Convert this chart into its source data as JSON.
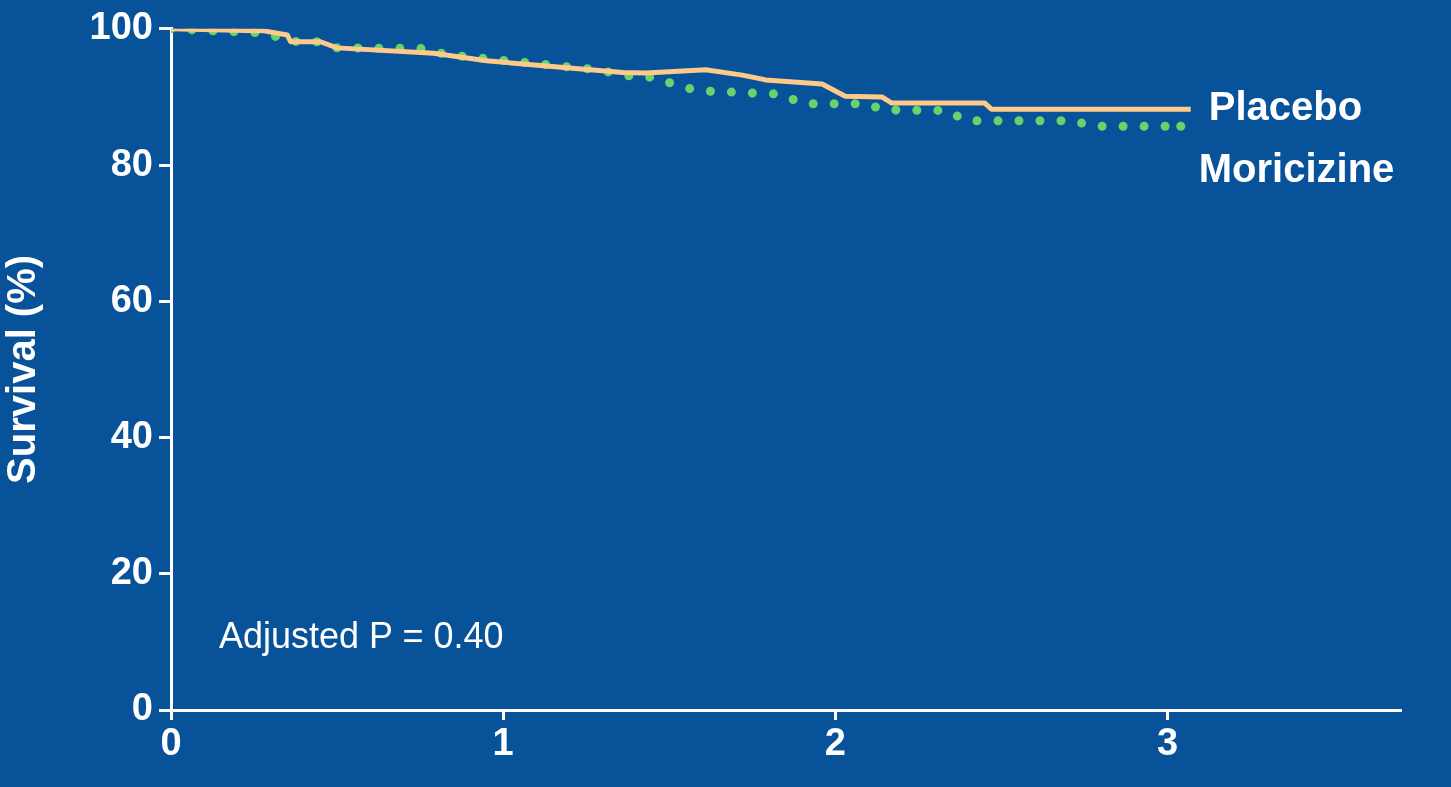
{
  "chart_data": {
    "type": "line",
    "ylabel": "Survival (%)",
    "xlim": [
      0,
      3.7
    ],
    "xticks": [
      0,
      1,
      2,
      3
    ],
    "ylim": [
      0,
      100
    ],
    "yticks": [
      0,
      20,
      40,
      60,
      80,
      100
    ],
    "grid": false,
    "legend": false,
    "marker": "none",
    "annotations": [
      "Adjusted P = 0.40"
    ],
    "series": [
      {
        "name": "Placebo",
        "color": "#ffc98a",
        "line_style": "solid",
        "x": [
          0,
          0.28,
          0.35,
          0.36,
          0.45,
          0.5,
          0.79,
          0.95,
          1.36,
          1.43,
          1.61,
          1.72,
          1.79,
          1.96,
          2.03,
          2.14,
          2.17,
          2.45,
          2.47,
          3.07
        ],
        "values": [
          100,
          99.7,
          99.1,
          98.1,
          98.1,
          97.2,
          96.4,
          95.3,
          93.6,
          93.5,
          94.0,
          93.2,
          92.5,
          91.9,
          90.1,
          90.0,
          89.1,
          89.1,
          88.2,
          88.2
        ]
      },
      {
        "name": "Moricizine",
        "color": "#66d46a",
        "line_style": "dotted",
        "x": [
          0,
          0.27,
          0.33,
          0.38,
          0.44,
          0.5,
          0.76,
          0.83,
          1.28,
          1.4,
          1.46,
          1.52,
          1.59,
          1.84,
          1.9,
          2.1,
          2.14,
          2.34,
          2.39,
          2.72,
          2.77,
          3.04
        ],
        "values": [
          100,
          99.4,
          98.7,
          98.1,
          98.1,
          97.2,
          97.1,
          96.2,
          94.0,
          92.9,
          92.9,
          91.7,
          90.9,
          90.4,
          89.0,
          89.0,
          88.1,
          88.0,
          86.5,
          86.5,
          85.7,
          85.7
        ]
      }
    ]
  }
}
